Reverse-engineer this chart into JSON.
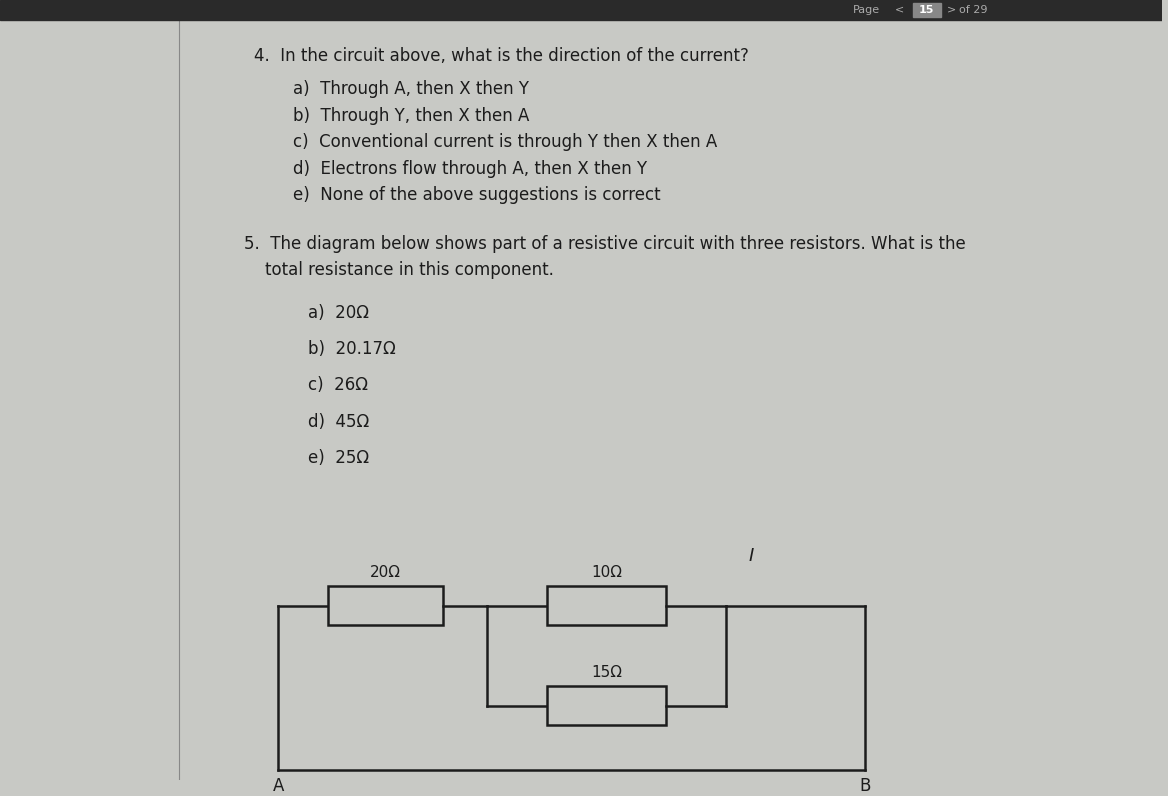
{
  "bg_color": "#c8c9c5",
  "header_bg": "#2a2a2a",
  "header_text_color": "#cccccc",
  "page_box_color": "#b0b0b0",
  "q4_title": "4.  In the circuit above, what is the direction of the current?",
  "q4_options": [
    "a)  Through A, then X then Y",
    "b)  Through Y, then X then A",
    "c)  Conventional current is through Y then X then A",
    "d)  Electrons flow through A, then X then Y",
    "e)  None of the above suggestions is correct"
  ],
  "q5_line1": "5.  The diagram below shows part of a resistive circuit with three resistors. What is the",
  "q5_line2": "    total resistance in this component.",
  "q5_options": [
    "a)  20Ω",
    "b)  20.17Ω",
    "c)  26Ω",
    "d)  45Ω",
    "e)  25Ω"
  ],
  "r20_label": "20Ω",
  "r10_label": "10Ω",
  "r15_label": "15Ω",
  "label_A": "A",
  "label_B": "B",
  "label_I": "I",
  "font_color": "#1c1c1c",
  "circuit_color": "#1c1c1c",
  "circuit_bg": "#c8c9c5"
}
